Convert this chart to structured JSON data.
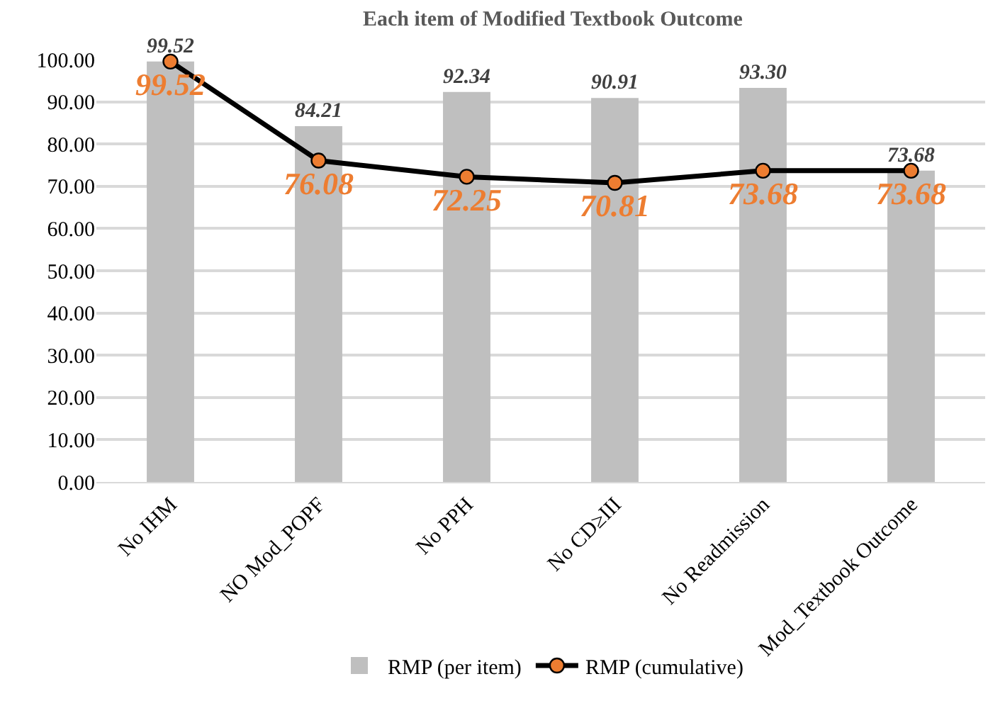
{
  "chart_data": {
    "type": "bar",
    "title": "Each item of Modified Textbook Outcome",
    "categories": [
      "No IHM",
      "NO Mod_POPF",
      "No PPH",
      "No CD≥III",
      "No Readmission",
      "Mod_Textbook Outcome"
    ],
    "series": [
      {
        "name": "RMP (per item)",
        "color": "#bfbfbf",
        "values": [
          99.52,
          84.21,
          92.34,
          90.91,
          93.3,
          73.68
        ],
        "value_labels": [
          "99.52",
          "84.21",
          "92.34",
          "90.91",
          "93.30",
          "73.68"
        ]
      },
      {
        "name": "RMP (cumulative)",
        "type": "line",
        "color": "#000000",
        "colors": [
          "#ed7d31",
          "#ed7d31",
          "#ed7d31",
          "#ed7d31",
          "#ed7d31",
          "#ed7d31"
        ],
        "values": [
          99.52,
          76.08,
          72.25,
          70.81,
          73.68,
          73.68
        ],
        "value_labels": [
          "99.52",
          "76.08",
          "72.25",
          "70.81",
          "73.68",
          "73.68"
        ]
      }
    ],
    "ylim": [
      0,
      100
    ],
    "yticks": [
      {
        "value": 0,
        "label": "0.00"
      },
      {
        "value": 10,
        "label": "10.00"
      },
      {
        "value": 20,
        "label": "20.00"
      },
      {
        "value": 30,
        "label": "30.00"
      },
      {
        "value": 40,
        "label": "40.00"
      },
      {
        "value": 50,
        "label": "50.00"
      },
      {
        "value": 60,
        "label": "60.00"
      },
      {
        "value": 70,
        "label": "70.00"
      },
      {
        "value": 80,
        "label": "80.00"
      },
      {
        "value": 90,
        "label": "90.00"
      },
      {
        "value": 100,
        "label": "100.00"
      }
    ],
    "grid": "y",
    "legend": "bottom",
    "marker": "circle",
    "line_style": "solid"
  }
}
